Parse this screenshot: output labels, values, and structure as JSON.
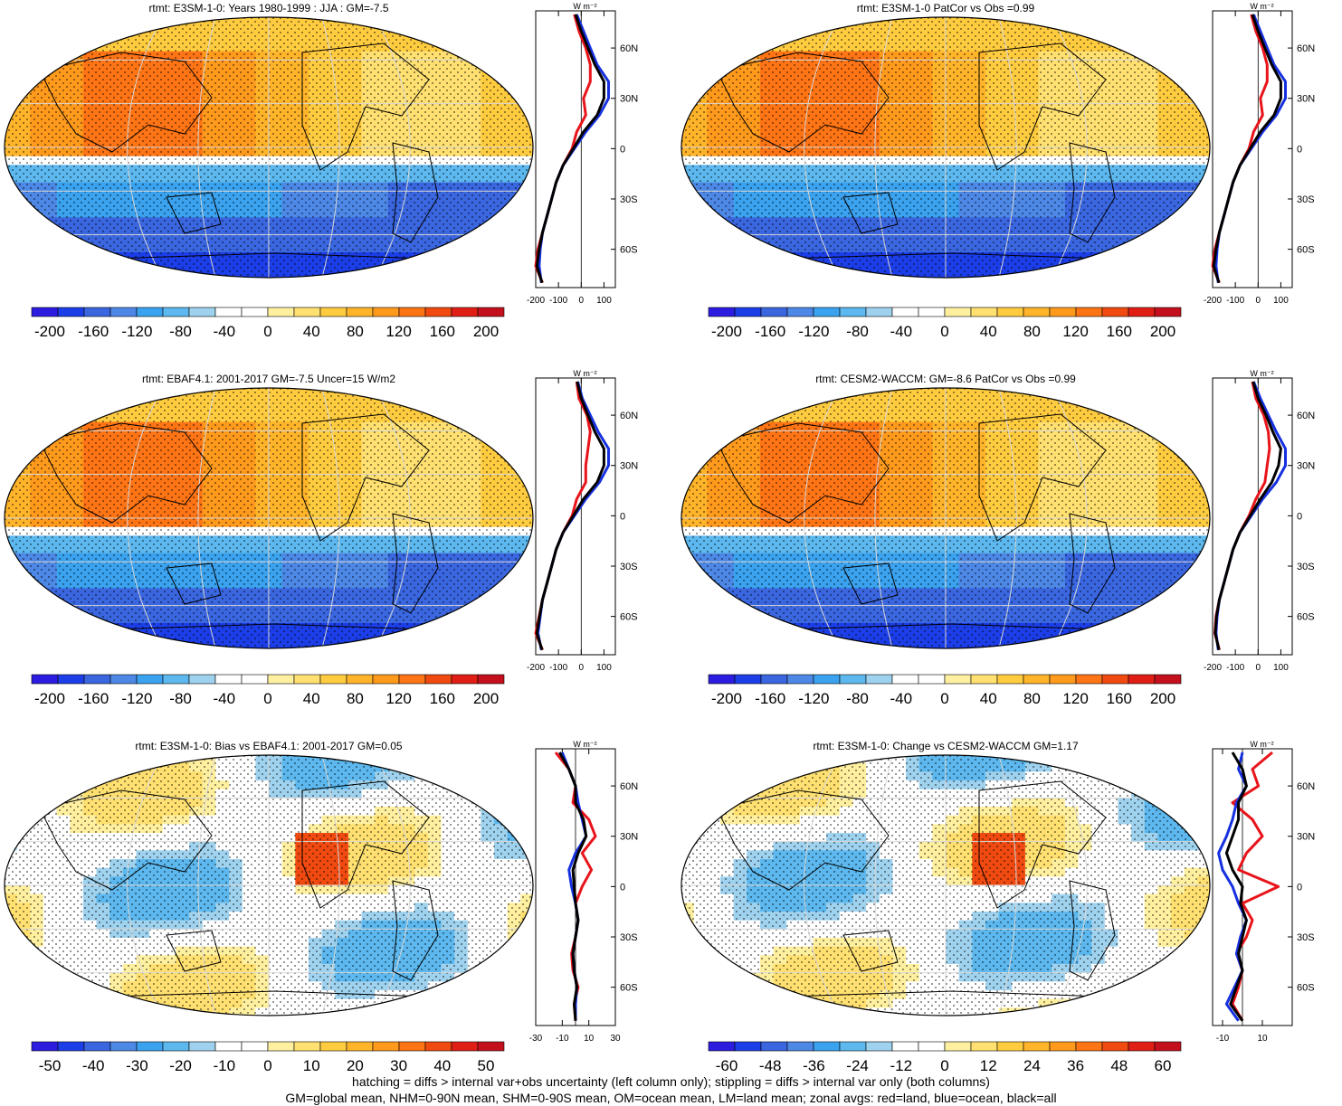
{
  "chart_data": [
    {
      "type": "heatmap",
      "title": "rtmt: E3SM-1-0: Years 1980-1999 : JJA : GM=-7.5",
      "colorbar_ticks": [
        "-200",
        "-160",
        "-120",
        "-80",
        "-40",
        "0",
        "40",
        "80",
        "120",
        "160",
        "200"
      ],
      "zonal_xticks": [
        "-200",
        "-100",
        "0",
        "100"
      ],
      "zonal_yticks": [
        "60N",
        "30N",
        "0",
        "30S",
        "60S"
      ],
      "zonal_unit": "W m⁻²",
      "lat": [
        80,
        70,
        60,
        50,
        40,
        30,
        20,
        10,
        0,
        -10,
        -20,
        -30,
        -40,
        -50,
        -60,
        -70,
        -80
      ],
      "zonal_series": [
        {
          "color": "#e8141b",
          "values": [
            -30,
            -10,
            20,
            40,
            40,
            10,
            20,
            -20,
            -40,
            -80,
            -110,
            -130,
            -150,
            -170,
            -190,
            -200,
            -170
          ]
        },
        {
          "color": "#1630e0",
          "values": [
            -20,
            10,
            40,
            70,
            120,
            120,
            80,
            20,
            -30,
            -80,
            -110,
            -130,
            -150,
            -170,
            -180,
            -185,
            -175
          ]
        },
        {
          "color": "#000000",
          "values": [
            -25,
            0,
            30,
            60,
            100,
            100,
            70,
            10,
            -35,
            -80,
            -110,
            -130,
            -150,
            -170,
            -185,
            -195,
            -172
          ]
        }
      ],
      "range": [
        -200,
        200
      ]
    },
    {
      "type": "heatmap",
      "title": "rtmt: E3SM-1-0 PatCor vs Obs =0.99",
      "colorbar_ticks": [
        "-200",
        "-160",
        "-120",
        "-80",
        "-40",
        "0",
        "40",
        "80",
        "120",
        "160",
        "200"
      ],
      "zonal_xticks": [
        "-200",
        "-100",
        "0",
        "100"
      ],
      "zonal_yticks": [
        "60N",
        "30N",
        "0",
        "30S",
        "60S"
      ],
      "zonal_unit": "W m⁻²",
      "lat": [
        80,
        70,
        60,
        50,
        40,
        30,
        20,
        10,
        0,
        -10,
        -20,
        -30,
        -40,
        -50,
        -60,
        -70,
        -80
      ],
      "zonal_series": [
        {
          "color": "#e8141b",
          "values": [
            -30,
            -10,
            20,
            40,
            40,
            10,
            20,
            -20,
            -40,
            -80,
            -110,
            -130,
            -150,
            -170,
            -190,
            -200,
            -170
          ]
        },
        {
          "color": "#1630e0",
          "values": [
            -20,
            10,
            40,
            70,
            120,
            120,
            80,
            20,
            -30,
            -80,
            -110,
            -130,
            -150,
            -170,
            -180,
            -185,
            -175
          ]
        },
        {
          "color": "#000000",
          "values": [
            -25,
            0,
            30,
            60,
            100,
            100,
            70,
            10,
            -35,
            -80,
            -110,
            -130,
            -150,
            -170,
            -185,
            -195,
            -172
          ]
        }
      ],
      "range": [
        -200,
        200
      ]
    },
    {
      "type": "heatmap",
      "title": "rtmt: EBAF4.1: 2001-2017 GM=-7.5 Uncer=15 W/m2",
      "colorbar_ticks": [
        "-200",
        "-160",
        "-120",
        "-80",
        "-40",
        "0",
        "40",
        "80",
        "120",
        "160",
        "200"
      ],
      "zonal_xticks": [
        "-200",
        "-100",
        "0",
        "100"
      ],
      "zonal_yticks": [
        "60N",
        "30N",
        "0",
        "30S",
        "60S"
      ],
      "zonal_unit": "W m⁻²",
      "lat": [
        80,
        70,
        60,
        50,
        40,
        30,
        20,
        10,
        0,
        -10,
        -20,
        -30,
        -40,
        -50,
        -60,
        -70,
        -80
      ],
      "zonal_series": [
        {
          "color": "#e8141b",
          "values": [
            -20,
            -10,
            25,
            40,
            30,
            20,
            20,
            -20,
            -40,
            -80,
            -110,
            -130,
            -150,
            -170,
            -185,
            -200,
            -170
          ]
        },
        {
          "color": "#1630e0",
          "values": [
            -15,
            5,
            40,
            75,
            120,
            120,
            80,
            20,
            -30,
            -80,
            -110,
            -130,
            -150,
            -170,
            -180,
            -190,
            -175
          ]
        },
        {
          "color": "#000000",
          "values": [
            -18,
            0,
            30,
            60,
            100,
            100,
            70,
            10,
            -35,
            -80,
            -110,
            -130,
            -150,
            -170,
            -183,
            -195,
            -172
          ]
        }
      ],
      "range": [
        -200,
        200
      ]
    },
    {
      "type": "heatmap",
      "title": "rtmt: CESM2-WACCM: GM=-8.6 PatCor vs Obs =0.99",
      "colorbar_ticks": [
        "-200",
        "-160",
        "-120",
        "-80",
        "-40",
        "0",
        "40",
        "80",
        "120",
        "160",
        "200"
      ],
      "zonal_xticks": [
        "-200",
        "-100",
        "0",
        "100"
      ],
      "zonal_yticks": [
        "60N",
        "30N",
        "0",
        "30S",
        "60S"
      ],
      "zonal_unit": "W m⁻²",
      "lat": [
        80,
        70,
        60,
        50,
        40,
        30,
        20,
        10,
        0,
        -10,
        -20,
        -30,
        -40,
        -50,
        -60,
        -70,
        -80
      ],
      "zonal_series": [
        {
          "color": "#e8141b",
          "values": [
            -25,
            -10,
            25,
            45,
            50,
            40,
            30,
            -10,
            -40,
            -80,
            -110,
            -130,
            -150,
            -170,
            -185,
            -190,
            -170
          ]
        },
        {
          "color": "#1630e0",
          "values": [
            -20,
            10,
            45,
            80,
            120,
            120,
            80,
            20,
            -30,
            -80,
            -110,
            -130,
            -150,
            -170,
            -180,
            -185,
            -175
          ]
        },
        {
          "color": "#000000",
          "values": [
            -22,
            0,
            35,
            65,
            100,
            90,
            60,
            10,
            -35,
            -80,
            -110,
            -130,
            -150,
            -170,
            -183,
            -188,
            -172
          ]
        }
      ],
      "range": [
        -200,
        200
      ]
    },
    {
      "type": "heatmap",
      "title": "rtmt: E3SM-1-0: Bias vs EBAF4.1: 2001-2017 GM=0.05",
      "colorbar_ticks": [
        "-50",
        "-40",
        "-30",
        "-20",
        "-10",
        "0",
        "10",
        "20",
        "30",
        "40",
        "50"
      ],
      "zonal_xticks": [
        "-30",
        "-10",
        "10",
        "30"
      ],
      "zonal_yticks": [
        "60N",
        "30N",
        "0",
        "30S",
        "60S"
      ],
      "zonal_unit": "W m⁻²",
      "lat": [
        80,
        70,
        60,
        50,
        40,
        30,
        20,
        10,
        0,
        -10,
        -20,
        -30,
        -40,
        -50,
        -60,
        -70,
        -80
      ],
      "zonal_series": [
        {
          "color": "#e8141b",
          "values": [
            -15,
            -5,
            0,
            -2,
            10,
            15,
            5,
            12,
            5,
            0,
            2,
            0,
            -3,
            -2,
            2,
            -1,
            0
          ]
        },
        {
          "color": "#1630e0",
          "values": [
            -10,
            -5,
            0,
            2,
            5,
            8,
            0,
            -5,
            -3,
            0,
            2,
            0,
            -2,
            -1,
            1,
            0,
            0
          ]
        },
        {
          "color": "#000000",
          "values": [
            -12,
            -5,
            0,
            0,
            6,
            8,
            2,
            -2,
            -1,
            0,
            2,
            0,
            -2,
            -1,
            1,
            -1,
            0
          ]
        }
      ],
      "range": [
        -50,
        50
      ]
    },
    {
      "type": "heatmap",
      "title": "rtmt: E3SM-1-0: Change vs CESM2-WACCM GM=1.17",
      "colorbar_ticks": [
        "-60",
        "-48",
        "-36",
        "-24",
        "-12",
        "0",
        "12",
        "24",
        "36",
        "48",
        "60"
      ],
      "zonal_xticks": [
        "-10",
        "10"
      ],
      "zonal_yticks": [
        "60N",
        "30N",
        "0",
        "30S",
        "60S"
      ],
      "zonal_unit": "W m⁻²",
      "lat": [
        80,
        70,
        60,
        50,
        40,
        30,
        20,
        10,
        0,
        -10,
        -20,
        -30,
        -40,
        -50,
        -60,
        -70,
        -80
      ],
      "zonal_series": [
        {
          "color": "#e8141b",
          "values": [
            15,
            5,
            8,
            -5,
            5,
            10,
            2,
            -2,
            18,
            0,
            5,
            2,
            -3,
            0,
            -2,
            -5,
            0
          ]
        },
        {
          "color": "#1630e0",
          "values": [
            0,
            -2,
            2,
            -3,
            -5,
            -8,
            -12,
            -10,
            -5,
            -2,
            2,
            -1,
            -3,
            0,
            -4,
            -8,
            -2
          ]
        },
        {
          "color": "#000000",
          "values": [
            -5,
            0,
            2,
            -2,
            -2,
            -5,
            -8,
            -5,
            0,
            -1,
            2,
            0,
            -2,
            0,
            -3,
            -6,
            0
          ]
        }
      ],
      "range": [
        -60,
        60
      ]
    }
  ],
  "footer": {
    "line1": "hatching = diffs > internal var+obs uncertainty (left column only); stippling = diffs > internal var only (both columns)",
    "line2": "GM=global mean, NHM=0-90N mean, SHM=0-90S mean, OM=ocean mean, LM=land mean; zonal avgs: red=land, blue=ocean, black=all"
  },
  "colors": {
    "palette": [
      "#2c1ce0",
      "#1c3ee8",
      "#3a66e0",
      "#4d88e6",
      "#3aa2ee",
      "#5cb8ee",
      "#9fd2ee",
      "#ffffff",
      "#ffffff",
      "#fff0a0",
      "#ffe070",
      "#ffcc40",
      "#ffb42a",
      "#ff9a1c",
      "#ff7414",
      "#f04a10",
      "#e01e16",
      "#c4101c"
    ]
  }
}
